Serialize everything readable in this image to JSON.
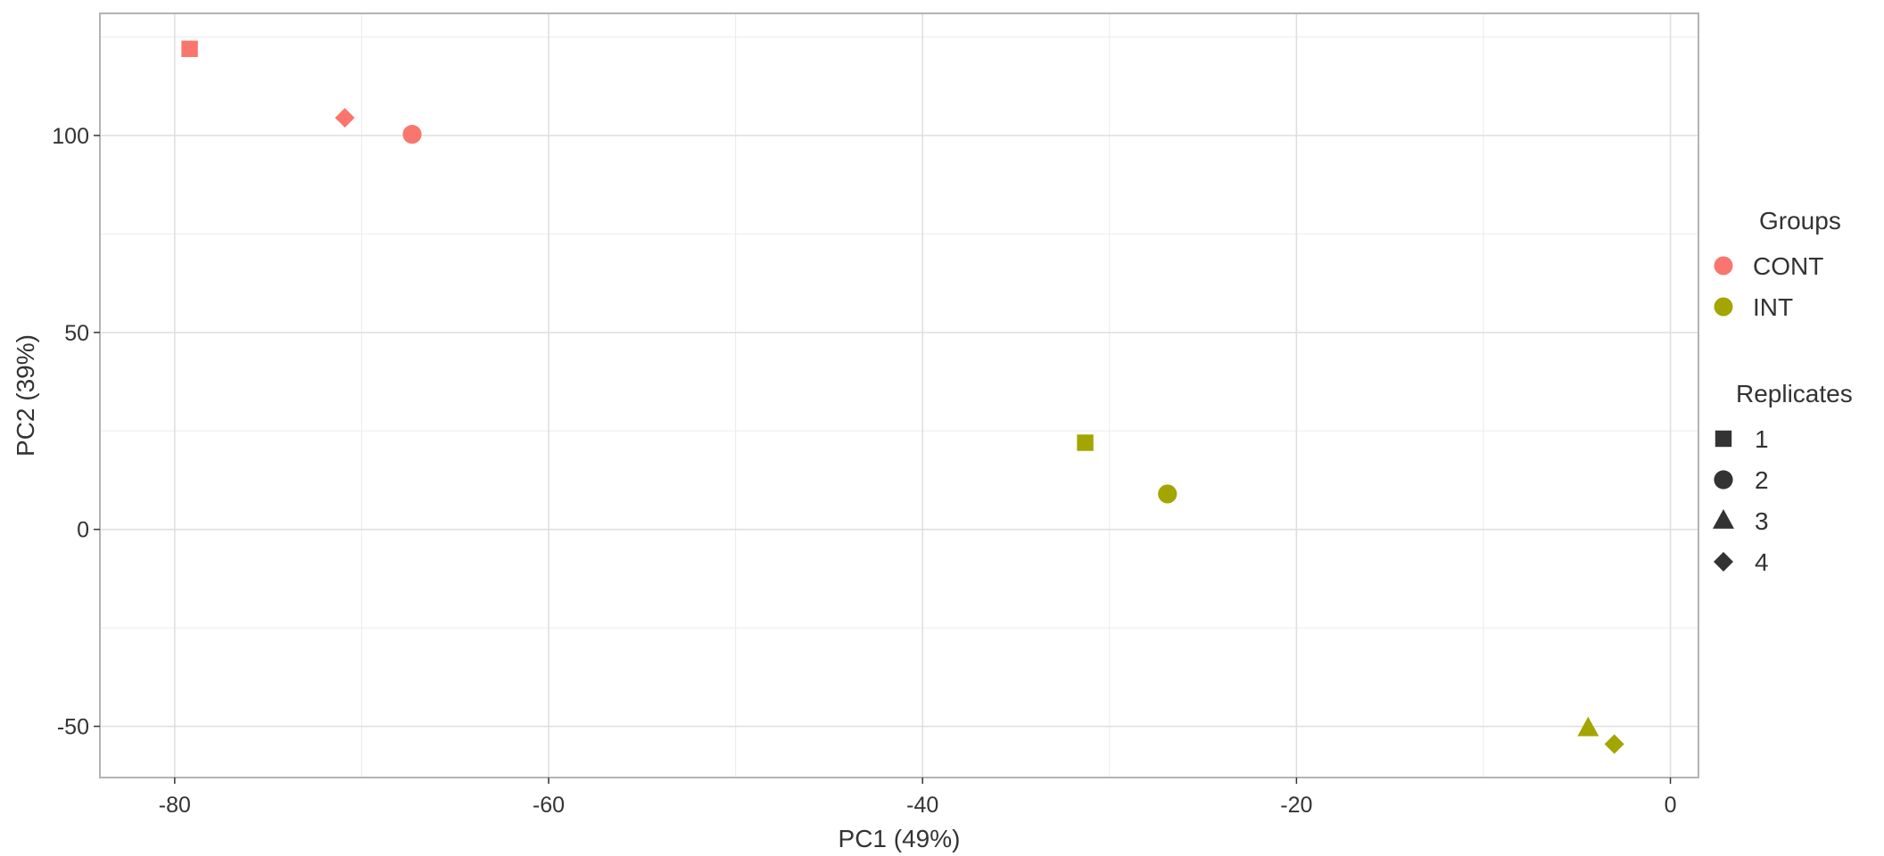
{
  "chart_data": {
    "type": "scatter",
    "title": "",
    "xlabel": "PC1 (49%)",
    "ylabel": "PC2 (39%)",
    "xlim": [
      -84,
      1.5
    ],
    "ylim": [
      -63,
      131
    ],
    "x_ticks": [
      -80,
      -60,
      -40,
      -20,
      0
    ],
    "y_ticks": [
      -50,
      0,
      50,
      100
    ],
    "x_tick_labels": [
      "-80",
      "-60",
      "-40",
      "-20",
      "0"
    ],
    "y_tick_labels": [
      "-50",
      "0",
      "50",
      "100"
    ],
    "grid": true,
    "legend_position": "right",
    "groups": {
      "title": "Groups",
      "entries": [
        {
          "label": "CONT",
          "color": "#F8766D"
        },
        {
          "label": "INT",
          "color": "#A3A500"
        }
      ]
    },
    "replicates": {
      "title": "Replicates",
      "entries": [
        {
          "label": "1",
          "shape": "square"
        },
        {
          "label": "2",
          "shape": "circle"
        },
        {
          "label": "3",
          "shape": "triangle"
        },
        {
          "label": "4",
          "shape": "diamond"
        }
      ]
    },
    "points": [
      {
        "group": "CONT",
        "replicate": "1",
        "x": -79.2,
        "y": 122.0
      },
      {
        "group": "CONT",
        "replicate": "4",
        "x": -70.9,
        "y": 104.5
      },
      {
        "group": "CONT",
        "replicate": "2",
        "x": -67.3,
        "y": 100.3
      },
      {
        "group": "INT",
        "replicate": "1",
        "x": -31.3,
        "y": 22.0
      },
      {
        "group": "INT",
        "replicate": "2",
        "x": -26.9,
        "y": 9.0
      },
      {
        "group": "INT",
        "replicate": "3",
        "x": -4.4,
        "y": -50.5
      },
      {
        "group": "INT",
        "replicate": "4",
        "x": -3.0,
        "y": -54.5
      }
    ]
  }
}
